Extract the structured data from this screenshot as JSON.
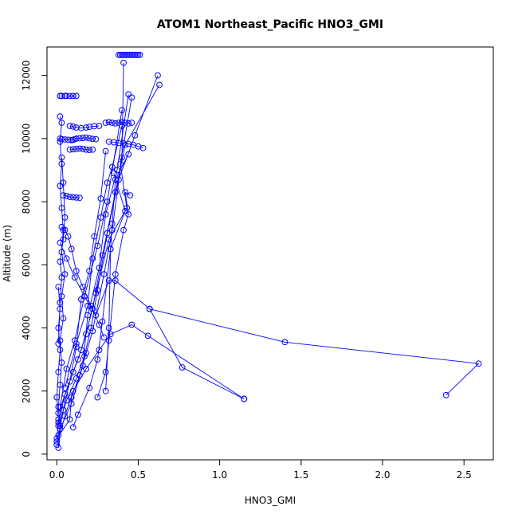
{
  "chart_data": {
    "type": "line",
    "title": "ATOM1 Northeast_Pacific HNO3_GMI",
    "xlabel": "HNO3_GMI",
    "ylabel": "Altitude (m)",
    "xlim": [
      -0.06,
      2.68
    ],
    "ylim": [
      -180,
      12900
    ],
    "x_ticks": [
      0.0,
      0.5,
      1.0,
      1.5,
      2.0,
      2.5
    ],
    "x_tick_labels": [
      "0.0",
      "0.5",
      "1.0",
      "1.5",
      "2.0",
      "2.5"
    ],
    "y_ticks": [
      0,
      2000,
      4000,
      6000,
      8000,
      10000,
      12000
    ],
    "y_tick_labels": [
      "0",
      "2000",
      "4000",
      "6000",
      "8000",
      "10000",
      "12000"
    ],
    "series_color": "#0000ff",
    "marker": "open-circle",
    "grid": false,
    "series": [
      {
        "x": [
          0.01,
          0.02,
          0.01,
          0.02,
          0.03,
          0.02,
          0.04,
          0.03,
          0.05,
          0.03,
          0.04,
          0.03,
          0.02,
          0.03,
          0.02,
          0.03,
          0.02
        ],
        "y": [
          200,
          900,
          1500,
          2200,
          2900,
          3600,
          4300,
          5000,
          5700,
          6400,
          7100,
          7800,
          8500,
          9200,
          9900,
          10500,
          10700
        ]
      },
      {
        "x": [
          0.02,
          0.03,
          0.05,
          0.06,
          0.08,
          0.1,
          0.12
        ],
        "y": [
          11350,
          11350,
          11350,
          11350,
          11350,
          11350,
          11350
        ]
      },
      {
        "x": [
          0.38,
          0.39,
          0.4,
          0.41,
          0.42,
          0.43,
          0.44,
          0.45,
          0.46,
          0.47,
          0.48,
          0.49,
          0.5,
          0.51
        ],
        "y": [
          12650,
          12650,
          12650,
          12650,
          12650,
          12650,
          12650,
          12650,
          12650,
          12650,
          12650,
          12650,
          12650,
          12650
        ]
      },
      {
        "x": [
          0.0,
          0.08,
          0.09,
          0.14,
          0.18,
          0.22,
          0.29,
          0.34,
          0.4,
          0.41
        ],
        "y": [
          500,
          1100,
          1800,
          2500,
          3200,
          3900,
          5700,
          7100,
          9400,
          12400
        ]
      },
      {
        "x": [
          0.01,
          0.06,
          0.12,
          0.17,
          0.21,
          0.25,
          0.31,
          0.38,
          0.48,
          0.62
        ],
        "y": [
          900,
          1700,
          2400,
          3100,
          4000,
          5200,
          7000,
          8700,
          10100,
          12000
        ]
      },
      {
        "x": [
          0.01,
          0.1,
          0.15,
          0.22,
          0.28,
          0.36,
          0.42,
          0.63
        ],
        "y": [
          1300,
          2600,
          3300,
          4600,
          6300,
          8300,
          9800,
          11700
        ]
      },
      {
        "x": [
          0.02,
          0.09,
          0.16,
          0.19,
          0.26,
          0.3,
          0.37,
          0.44
        ],
        "y": [
          800,
          1600,
          2800,
          4400,
          5900,
          7600,
          9000,
          11400
        ]
      },
      {
        "x": [
          0.01,
          0.05,
          0.13,
          0.18,
          0.24,
          0.32,
          0.43,
          0.39,
          0.46
        ],
        "y": [
          1000,
          1900,
          3000,
          3800,
          5100,
          6800,
          7800,
          9200,
          11300
        ]
      },
      {
        "x": [
          0.02,
          0.06,
          0.11,
          0.17,
          0.25,
          0.31,
          0.4
        ],
        "y": [
          1500,
          2700,
          3600,
          5000,
          6600,
          8000,
          10900
        ]
      },
      {
        "x": [
          0.1,
          0.13,
          0.2,
          0.25,
          0.28,
          0.33,
          0.42,
          0.35
        ],
        "y": [
          850,
          1250,
          2100,
          3000,
          4200,
          6500,
          7700,
          8900
        ]
      },
      {
        "x": [
          0.01,
          0.04,
          0.08,
          0.12,
          0.15,
          0.2,
          0.23,
          0.27,
          0.3
        ],
        "y": [
          600,
          1400,
          2300,
          3400,
          4900,
          5800,
          6900,
          8100,
          9600
        ]
      },
      {
        "x": [
          0.25,
          0.3,
          0.32,
          0.36,
          0.41,
          0.44,
          0.42,
          0.45
        ],
        "y": [
          1800,
          2600,
          3600,
          5700,
          7100,
          7600,
          8300,
          8200
        ]
      },
      {
        "x": [
          0.3,
          0.32,
          0.33,
          0.34,
          0.36,
          0.44
        ],
        "y": [
          2000,
          4000,
          6500,
          7300,
          8700,
          9500
        ]
      },
      {
        "x": [
          0.05,
          0.12,
          0.19,
          0.22,
          0.27,
          0.31,
          0.34,
          0.4
        ],
        "y": [
          2100,
          3500,
          4700,
          6200,
          7500,
          8600,
          9100,
          10400
        ]
      },
      {
        "x": [
          0.02,
          0.03,
          0.05,
          0.07,
          0.09,
          0.1,
          0.11,
          0.12,
          0.14,
          0.16,
          0.18,
          0.2,
          0.22,
          0.24
        ],
        "y": [
          10000,
          9980,
          9970,
          9960,
          9950,
          9960,
          9980,
          10000,
          10010,
          10020,
          10030,
          10010,
          9990,
          9980
        ]
      },
      {
        "x": [
          0.08,
          0.1,
          0.12,
          0.14,
          0.16,
          0.18,
          0.2,
          0.22
        ],
        "y": [
          9650,
          9660,
          9670,
          9680,
          9670,
          9650,
          9640,
          9650
        ]
      },
      {
        "x": [
          0.08,
          0.1,
          0.12,
          0.15,
          0.18,
          0.2,
          0.23,
          0.26
        ],
        "y": [
          10400,
          10380,
          10350,
          10330,
          10350,
          10370,
          10390,
          10400
        ]
      },
      {
        "x": [
          0.3,
          0.32,
          0.34,
          0.36,
          0.38,
          0.4,
          0.42,
          0.44,
          0.46
        ],
        "y": [
          10500,
          10520,
          10500,
          10480,
          10500,
          10520,
          10500,
          10480,
          10500
        ]
      },
      {
        "x": [
          0.32,
          0.35,
          0.38,
          0.41,
          0.44,
          0.47,
          0.5,
          0.53
        ],
        "y": [
          9900,
          9880,
          9860,
          9850,
          9830,
          9800,
          9750,
          9700
        ]
      },
      {
        "x": [
          0.04,
          0.06,
          0.08,
          0.1,
          0.12,
          0.14
        ],
        "y": [
          8200,
          8180,
          8150,
          8140,
          8130,
          8120
        ]
      },
      {
        "x": [
          0.03,
          0.05,
          0.07,
          0.09,
          0.12,
          0.16,
          0.21,
          0.26,
          0.29
        ],
        "y": [
          7200,
          7100,
          6900,
          6500,
          5800,
          5300,
          4700,
          4100,
          3700
        ]
      },
      {
        "x": [
          0.02,
          0.06,
          0.11,
          0.17,
          0.24,
          0.32,
          0.36,
          0.57
        ],
        "y": [
          6700,
          6200,
          5600,
          5000,
          4400,
          5500,
          5500,
          4600
        ]
      },
      {
        "x": [
          0.0,
          0.05,
          0.1,
          0.18,
          0.26,
          0.33,
          0.46,
          0.56,
          1.15
        ],
        "y": [
          300,
          1200,
          2000,
          2700,
          3300,
          3800,
          4100,
          3750,
          1750
        ]
      },
      {
        "x": [
          0.57,
          0.77,
          1.15
        ],
        "y": [
          4600,
          2750,
          1750
        ]
      },
      {
        "x": [
          0.57,
          1.4,
          2.59,
          2.39
        ],
        "y": [
          4600,
          3550,
          2870,
          1870
        ]
      },
      {
        "x": [
          0.01,
          0.02,
          0.03,
          0.02,
          0.04,
          0.05,
          0.04,
          0.03
        ],
        "y": [
          3500,
          4800,
          5600,
          6100,
          6800,
          7500,
          8600,
          9400
        ]
      },
      {
        "x": [
          0.0,
          0.01,
          0.0,
          0.01,
          0.02,
          0.01,
          0.02,
          0.01
        ],
        "y": [
          400,
          1100,
          1800,
          2600,
          3300,
          4000,
          4600,
          5300
        ]
      }
    ]
  }
}
